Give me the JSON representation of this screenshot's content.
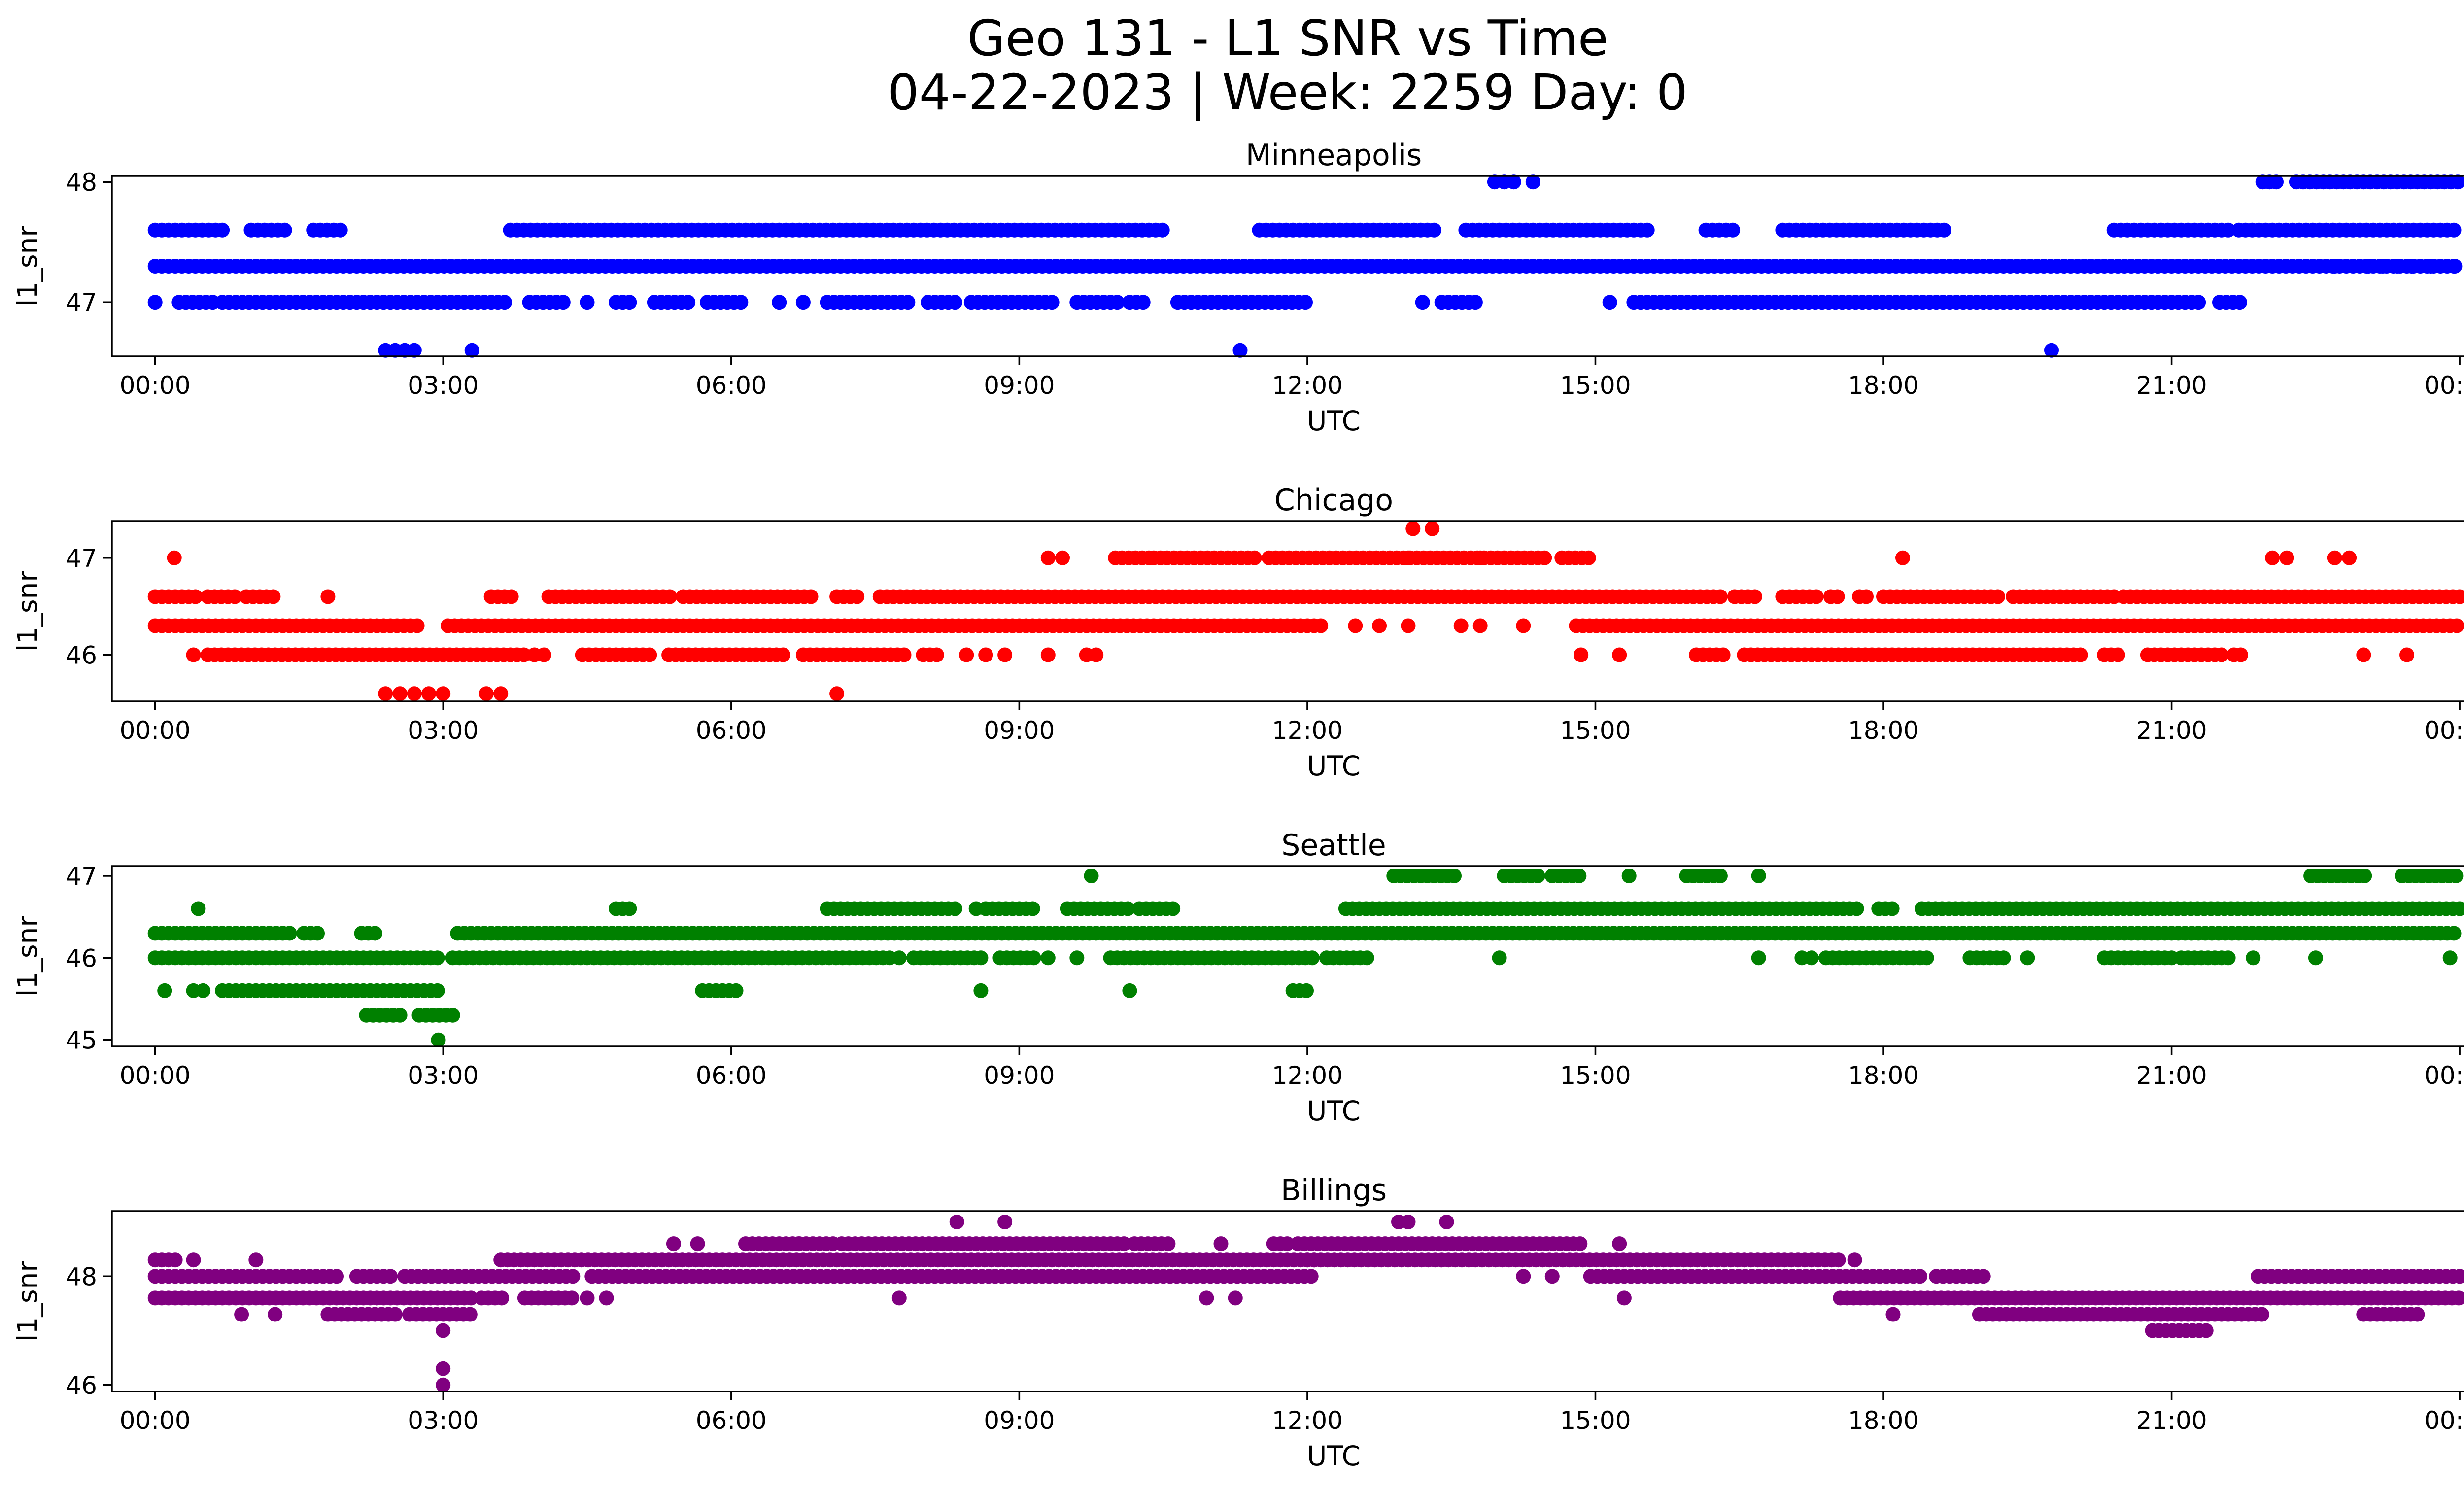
{
  "figure": {
    "title_line1": "Geo 131 - L1 SNR vs Time",
    "title_line2": "04-22-2023 | Week: 2259 Day: 0"
  },
  "chart_data": [
    {
      "type": "scatter",
      "title": "Minneapolis",
      "xlabel": "UTC",
      "ylabel": "l1_snr",
      "color": "#0000ff",
      "xlim": [
        -0.45,
        25.0
      ],
      "ylim": [
        46.55,
        48.05
      ],
      "xticks": [
        0,
        3,
        6,
        9,
        12,
        15,
        18,
        21,
        24
      ],
      "xtick_labels": [
        "00:00",
        "03:00",
        "06:00",
        "09:00",
        "12:00",
        "15:00",
        "18:00",
        "21:00",
        "00:00"
      ],
      "yticks": [
        47,
        48
      ],
      "ytick_labels": [
        "47",
        "48"
      ],
      "grid": false,
      "legend": "none",
      "series": [
        {
          "y": 47.3,
          "segments": [
            [
              0.0,
              24.0
            ]
          ]
        },
        {
          "y": 47.6,
          "segments": [
            [
              0.0,
              0.75
            ],
            [
              1.0,
              1.4
            ],
            [
              1.65,
              1.95
            ],
            [
              3.7,
              10.5
            ],
            [
              11.5,
              13.35
            ],
            [
              13.65,
              15.6
            ],
            [
              16.15,
              16.45
            ],
            [
              16.95,
              18.65
            ],
            [
              20.4,
              21.6
            ],
            [
              21.7,
              24.0
            ]
          ]
        },
        {
          "y": 47.0,
          "segments": [
            [
              0.0,
              0.05
            ],
            [
              0.25,
              0.6
            ],
            [
              0.7,
              3.7
            ],
            [
              3.9,
              4.3
            ],
            [
              4.5,
              4.55
            ],
            [
              4.8,
              4.95
            ],
            [
              5.2,
              5.55
            ],
            [
              5.75,
              6.1
            ],
            [
              6.5,
              6.55
            ],
            [
              6.75,
              6.8
            ],
            [
              7.0,
              7.85
            ],
            [
              8.05,
              8.35
            ],
            [
              8.5,
              9.4
            ],
            [
              9.6,
              10.05
            ],
            [
              10.15,
              10.3
            ],
            [
              10.65,
              10.95
            ],
            [
              11.0,
              12.0
            ],
            [
              13.2,
              13.25
            ],
            [
              13.4,
              13.8
            ],
            [
              15.15,
              15.2
            ],
            [
              15.4,
              21.3
            ],
            [
              21.5,
              21.75
            ]
          ]
        },
        {
          "y": 46.6,
          "points": [
            2.4,
            2.5,
            2.6,
            2.7,
            3.3,
            11.3,
            19.75
          ]
        },
        {
          "y": 48.0,
          "points": [
            13.95,
            14.05,
            14.15,
            14.35
          ],
          "segments": [
            [
              21.95,
              22.15
            ],
            [
              22.3,
              24.0
            ]
          ]
        },
        {
          "y": 47.3,
          "points": [
            22.7,
            23.05,
            23.2,
            23.35,
            23.5,
            23.7,
            23.95
          ]
        }
      ]
    },
    {
      "type": "scatter",
      "title": "Chicago",
      "xlabel": "UTC",
      "ylabel": "l1_snr",
      "color": "#ff0000",
      "xlim": [
        -0.45,
        25.0
      ],
      "ylim": [
        45.52,
        47.38
      ],
      "xticks": [
        0,
        3,
        6,
        9,
        12,
        15,
        18,
        21,
        24
      ],
      "xtick_labels": [
        "00:00",
        "03:00",
        "06:00",
        "09:00",
        "12:00",
        "15:00",
        "18:00",
        "21:00",
        "00:00"
      ],
      "yticks": [
        46,
        47
      ],
      "ytick_labels": [
        "46",
        "47"
      ],
      "grid": false,
      "legend": "none",
      "series": [
        {
          "y": 46.6,
          "segments": [
            [
              0.0,
              0.45
            ],
            [
              0.55,
              0.85
            ],
            [
              0.95,
              1.25
            ],
            [
              3.5,
              3.75
            ],
            [
              4.1,
              5.4
            ],
            [
              5.5,
              6.85
            ],
            [
              7.1,
              7.35
            ],
            [
              7.55,
              16.3
            ],
            [
              16.45,
              16.7
            ],
            [
              16.95,
              17.3
            ],
            [
              17.45,
              17.55
            ],
            [
              17.75,
              17.85
            ],
            [
              18.0,
              19.2
            ],
            [
              19.35,
              20.4
            ],
            [
              20.5,
              24.0
            ]
          ],
          "points": [
            1.8
          ]
        },
        {
          "y": 46.3,
          "segments": [
            [
              0.0,
              2.75
            ],
            [
              3.05,
              11.25
            ],
            [
              11.3,
              12.2
            ],
            [
              14.8,
              24.0
            ]
          ],
          "points": [
            12.5,
            12.75,
            13.05,
            13.6,
            13.8,
            14.25
          ]
        },
        {
          "y": 46.0,
          "segments": [
            [
              0.55,
              3.85
            ],
            [
              4.45,
              5.2
            ],
            [
              5.35,
              6.55
            ],
            [
              6.75,
              7.8
            ],
            [
              8.0,
              8.2
            ],
            [
              16.05,
              16.35
            ],
            [
              16.55,
              20.1
            ],
            [
              20.3,
              20.45
            ],
            [
              20.75,
              21.55
            ],
            [
              21.65,
              21.75
            ]
          ],
          "points": [
            0.4,
            3.95,
            4.05,
            8.45,
            8.65,
            8.85,
            9.3,
            9.7,
            9.8,
            14.85,
            15.25,
            23.0,
            23.45
          ]
        },
        {
          "y": 47.0,
          "points": [
            0.2,
            9.3,
            9.45,
            13.05,
            13.8,
            18.2,
            22.05,
            22.2,
            22.7,
            22.85
          ],
          "segments": [
            [
              10.0,
              10.4
            ],
            [
              10.4,
              11.5
            ],
            [
              11.6,
              14.5
            ],
            [
              14.65,
              14.95
            ]
          ]
        },
        {
          "y": 47.3,
          "points": [
            13.1,
            13.3
          ]
        },
        {
          "y": 45.6,
          "points": [
            2.4,
            2.55,
            2.7,
            2.85,
            3.0,
            3.45,
            3.6,
            7.1
          ]
        }
      ]
    },
    {
      "type": "scatter",
      "title": "Seattle",
      "xlabel": "UTC",
      "ylabel": "l1_snr",
      "color": "#008000",
      "xlim": [
        -0.45,
        25.0
      ],
      "ylim": [
        44.92,
        47.12
      ],
      "xticks": [
        0,
        3,
        6,
        9,
        12,
        15,
        18,
        21,
        24
      ],
      "xtick_labels": [
        "00:00",
        "03:00",
        "06:00",
        "09:00",
        "12:00",
        "15:00",
        "18:00",
        "21:00",
        "00:00"
      ],
      "yticks": [
        45,
        46,
        47
      ],
      "ytick_labels": [
        "45",
        "46",
        "47"
      ],
      "grid": false,
      "legend": "none",
      "series": [
        {
          "y": 46.3,
          "segments": [
            [
              0.0,
              1.4
            ],
            [
              1.55,
              1.7
            ],
            [
              2.15,
              2.35
            ],
            [
              3.15,
              24.0
            ]
          ]
        },
        {
          "y": 46.0,
          "segments": [
            [
              0.0,
              3.0
            ],
            [
              3.1,
              7.7
            ],
            [
              7.9,
              8.65
            ],
            [
              8.8,
              9.2
            ],
            [
              9.95,
              12.05
            ],
            [
              12.2,
              12.65
            ],
            [
              17.4,
              18.45
            ],
            [
              18.9,
              19.3
            ],
            [
              20.3,
              21.05
            ],
            [
              21.1,
              21.6
            ]
          ],
          "points": [
            7.75,
            9.3,
            9.6,
            14.0,
            16.7,
            17.15,
            17.25,
            19.5,
            21.85,
            22.5,
            23.9
          ]
        },
        {
          "y": 46.6,
          "segments": [
            [
              4.8,
              4.95
            ],
            [
              7.0,
              8.35
            ],
            [
              8.65,
              9.2
            ],
            [
              9.5,
              10.15
            ],
            [
              10.25,
              10.6
            ],
            [
              12.4,
              17.75
            ],
            [
              17.95,
              18.1
            ],
            [
              18.4,
              24.0
            ]
          ],
          "points": [
            0.45,
            8.55
          ]
        },
        {
          "y": 45.6,
          "segments": [
            [
              0.7,
              2.95
            ],
            [
              5.7,
              6.05
            ],
            [
              11.85,
              12.05
            ]
          ],
          "points": [
            0.1,
            0.4,
            0.5,
            8.6,
            10.15
          ]
        },
        {
          "y": 45.3,
          "segments": [
            [
              2.2,
              2.55
            ],
            [
              2.75,
              3.1
            ]
          ]
        },
        {
          "y": 45.0,
          "points": [
            2.95
          ]
        },
        {
          "y": 47.0,
          "points": [
            9.75,
            15.35,
            16.3,
            16.7
          ],
          "segments": [
            [
              12.9,
              13.55
            ],
            [
              14.05,
              14.45
            ],
            [
              14.55,
              14.85
            ],
            [
              15.95,
              16.35
            ],
            [
              22.45,
              23.05
            ],
            [
              23.4,
              24.0
            ]
          ]
        }
      ]
    },
    {
      "type": "scatter",
      "title": "Billings",
      "xlabel": "UTC",
      "ylabel": "l1_snr",
      "color": "#800080",
      "xlim": [
        -0.45,
        25.0
      ],
      "ylim": [
        45.88,
        49.2
      ],
      "xticks": [
        0,
        3,
        6,
        9,
        12,
        15,
        18,
        21,
        24
      ],
      "xtick_labels": [
        "00:00",
        "03:00",
        "06:00",
        "09:00",
        "12:00",
        "15:00",
        "18:00",
        "21:00",
        "00:00"
      ],
      "yticks": [
        46,
        48
      ],
      "ytick_labels": [
        "46",
        "48"
      ],
      "grid": false,
      "legend": "none",
      "series": [
        {
          "y": 48.0,
          "segments": [
            [
              0.0,
              1.9
            ],
            [
              2.1,
              2.5
            ],
            [
              2.6,
              4.4
            ],
            [
              4.55,
              12.1
            ],
            [
              14.95,
              18.4
            ],
            [
              18.55,
              19.05
            ],
            [
              21.9,
              24.0
            ]
          ],
          "points": [
            14.25,
            14.55
          ]
        },
        {
          "y": 47.6,
          "segments": [
            [
              0.0,
              3.3
            ],
            [
              3.4,
              3.65
            ],
            [
              3.85,
              4.35
            ],
            [
              17.55,
              24.0
            ]
          ],
          "points": [
            4.5,
            4.7,
            7.75,
            10.95,
            11.25,
            15.3
          ]
        },
        {
          "y": 48.3,
          "segments": [
            [
              0.0,
              0.25
            ],
            [
              3.6,
              12.1
            ],
            [
              12.0,
              17.55
            ]
          ],
          "points": [
            0.4,
            1.05,
            17.7
          ]
        },
        {
          "y": 48.6,
          "segments": [
            [
              6.15,
              7.1
            ],
            [
              7.15,
              10.15
            ],
            [
              10.2,
              10.6
            ],
            [
              11.65,
              11.85
            ],
            [
              11.9,
              14.85
            ]
          ],
          "points": [
            5.4,
            5.65,
            6.7,
            11.1,
            15.25
          ]
        },
        {
          "y": 47.3,
          "segments": [
            [
              1.8,
              2.5
            ],
            [
              2.65,
              3.3
            ],
            [
              19.0,
              22.0
            ],
            [
              23.0,
              23.6
            ]
          ],
          "points": [
            0.9,
            1.25,
            18.1
          ]
        },
        {
          "y": 47.0,
          "segments": [
            [
              20.8,
              21.4
            ]
          ],
          "points": [
            3.0
          ]
        },
        {
          "y": 49.0,
          "points": [
            8.35,
            8.85,
            12.95,
            13.05,
            13.45
          ]
        },
        {
          "y": 46.3,
          "points": [
            3.0
          ]
        },
        {
          "y": 46.0,
          "points": [
            3.0
          ]
        }
      ]
    }
  ]
}
